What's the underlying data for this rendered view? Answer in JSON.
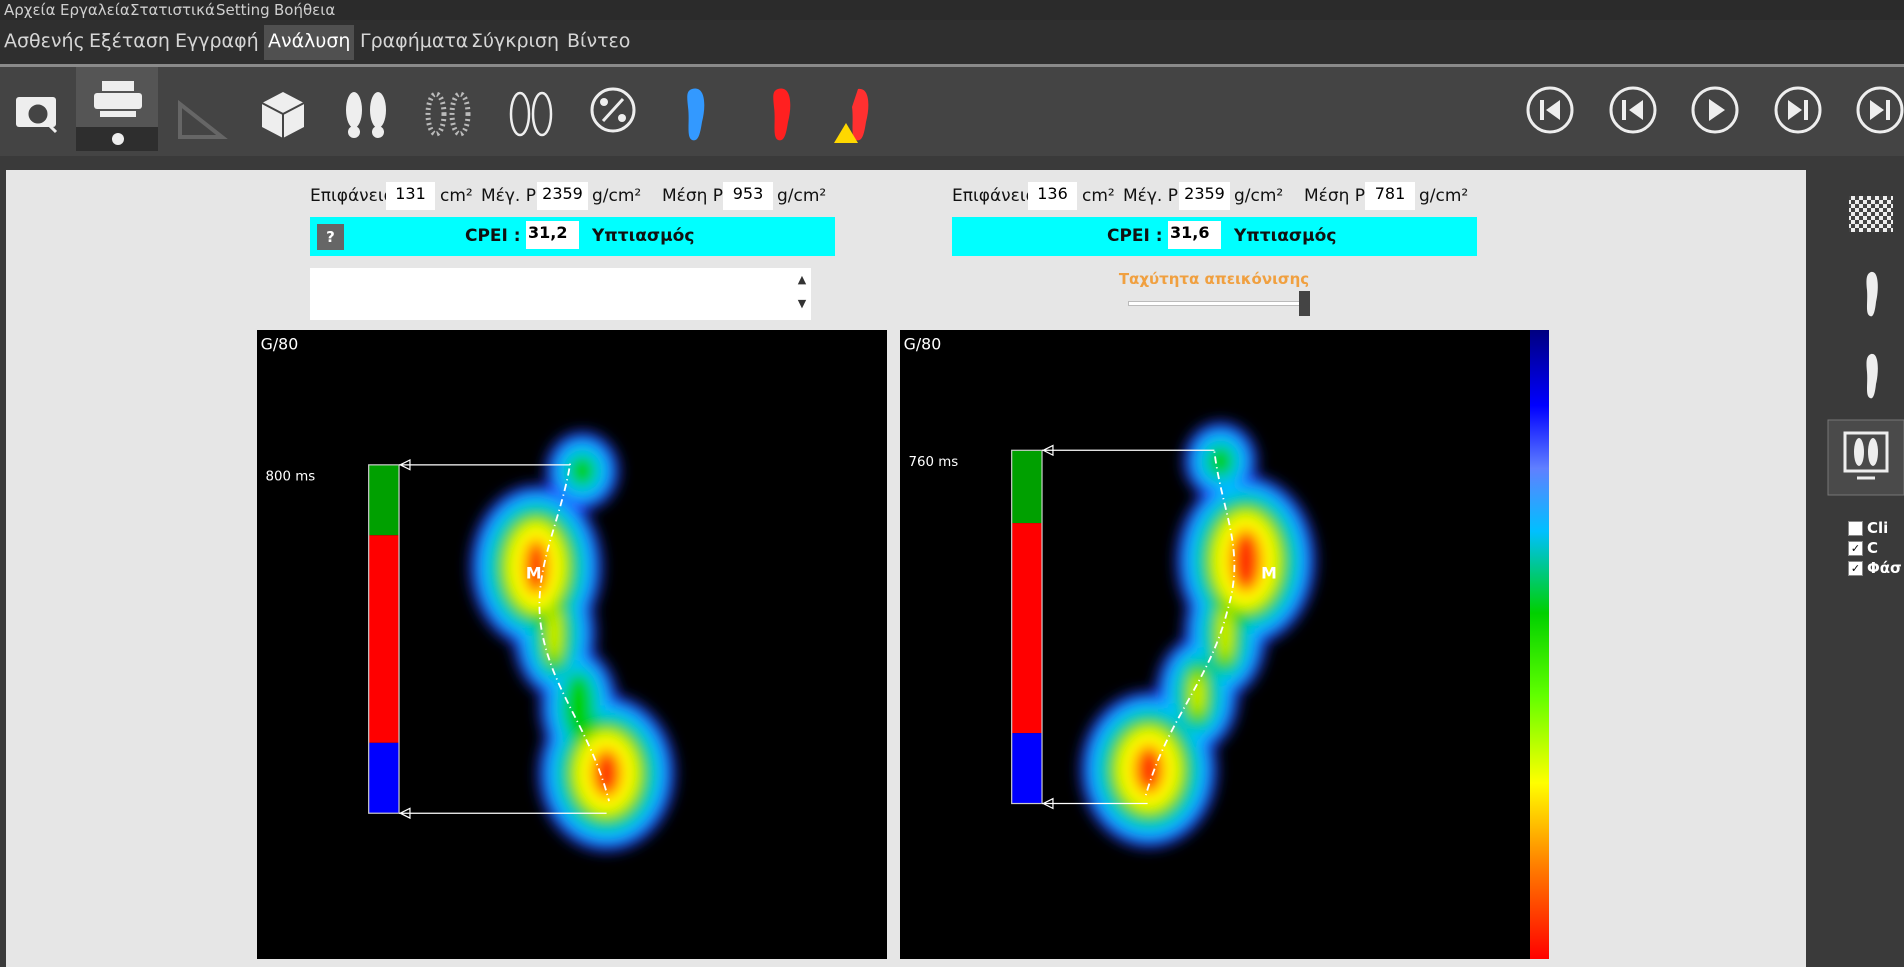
{
  "menu": [
    "Αρχεία",
    "Εργαλεία",
    "Στατιστικά",
    "Setting",
    "Βοήθεια"
  ],
  "tabs": [
    "Ασθενής",
    "Εξέταση",
    "Εγγραφή",
    "Ανάλυση",
    "Γραφήματα",
    "Σύγκριση",
    "Βίντεο"
  ],
  "left": {
    "area_label": "Επιφάνεια",
    "area": 131,
    "area_unit": "cm²",
    "max_label": "Μέγ. P",
    "max": 2359,
    "max_unit": "g/cm²",
    "mean_label": "Μέση P",
    "mean": 953,
    "mean_unit": "g/cm²",
    "help": "?",
    "cpei_label": "CPEI :",
    "cpei": "31,2",
    "cpei_result": "Υπτιασμός",
    "scale": "G/80",
    "duration": "800 ms",
    "marker": "M"
  },
  "right": {
    "area_label": "Επιφάνεια",
    "area": 136,
    "area_unit": "cm²",
    "max_label": "Μέγ. P",
    "max": 2359,
    "max_unit": "g/cm²",
    "mean_label": "Μέση P",
    "mean": 781,
    "mean_unit": "g/cm²",
    "cpei_label": "CPEI :",
    "cpei": "31,6",
    "cpei_result": "Υπτιασμός",
    "speed_label": "Ταχύτητα απεικόνισης",
    "scale": "G/80",
    "duration": "760 ms",
    "marker": "M"
  },
  "side_options": [
    "Cli",
    "C",
    "Φάσ"
  ]
}
